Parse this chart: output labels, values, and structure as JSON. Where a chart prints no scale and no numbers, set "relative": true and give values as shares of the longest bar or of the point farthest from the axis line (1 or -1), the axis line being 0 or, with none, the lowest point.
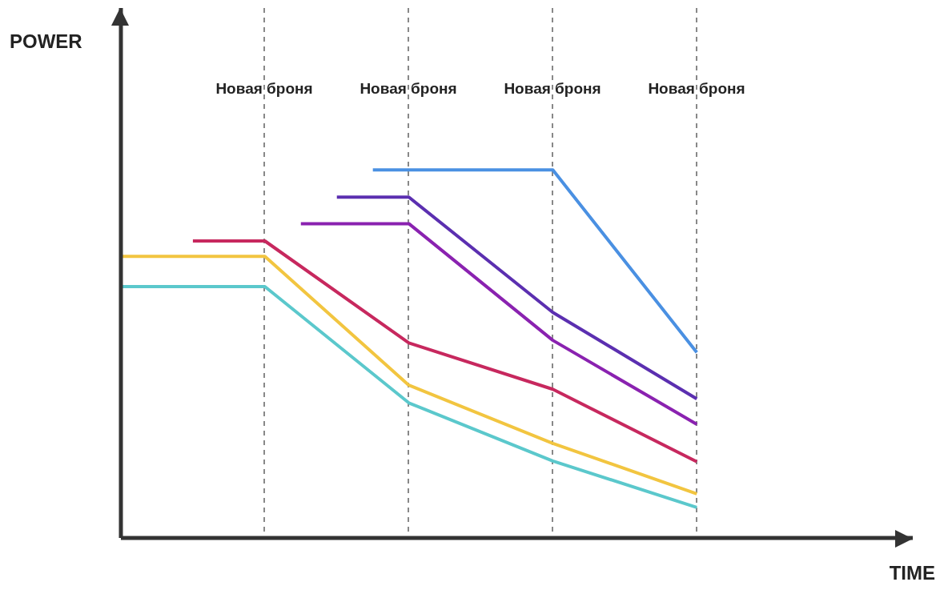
{
  "chart_data": {
    "type": "line",
    "relative": true,
    "xlabel": "TIME",
    "categories": [
      null,
      null,
      null,
      null,
      null,
      null,
      null,
      null,
      null,
      null,
      null,
      null,
      null,
      null,
      null,
      null,
      null,
      null,
      null,
      null,
      null,
      null,
      null
    ],
    "series": [
      {
        "color": "#f2c540",
        "values": [
          0.765,
          null,
          null,
          null,
          0.765,
          null,
          null,
          null,
          0.415,
          null,
          null,
          null,
          0.257,
          null,
          null,
          null,
          0.12,
          null,
          null,
          null,
          null,
          null,
          null
        ]
      },
      {
        "color": "#5bc8cc",
        "values": [
          0.683,
          null,
          null,
          null,
          0.683,
          null,
          null,
          null,
          0.367,
          null,
          null,
          null,
          0.209,
          null,
          null,
          null,
          0.083,
          null,
          null,
          null,
          null,
          null,
          null
        ]
      },
      {
        "color": "#c7285e",
        "values": [
          null,
          null,
          0.807,
          null,
          0.807,
          null,
          null,
          null,
          0.53,
          null,
          null,
          null,
          0.404,
          null,
          null,
          null,
          0.207,
          null,
          null,
          null,
          null,
          null,
          null
        ]
      },
      {
        "color": "#8a22b0",
        "values": [
          null,
          null,
          null,
          null,
          null,
          0.854,
          null,
          null,
          0.854,
          null,
          null,
          null,
          0.537,
          null,
          null,
          null,
          0.309,
          null,
          null,
          null,
          null,
          null,
          null
        ]
      },
      {
        "color": "#5b2fb0",
        "values": [
          null,
          null,
          null,
          null,
          null,
          null,
          0.926,
          null,
          0.926,
          null,
          null,
          null,
          0.613,
          null,
          null,
          null,
          0.378,
          null,
          null,
          null,
          null,
          null,
          null
        ]
      },
      {
        "color": "#4a90e2",
        "values": [
          null,
          null,
          null,
          null,
          null,
          null,
          null,
          1,
          null,
          null,
          null,
          null,
          1,
          null,
          null,
          null,
          0.504,
          null,
          null,
          null,
          null,
          null,
          null
        ]
      }
    ],
    "grid": "x",
    "annotations": [
      "POWER",
      "Новая броня",
      "Новая броня",
      "Новая броня",
      "Новая броня"
    ]
  }
}
